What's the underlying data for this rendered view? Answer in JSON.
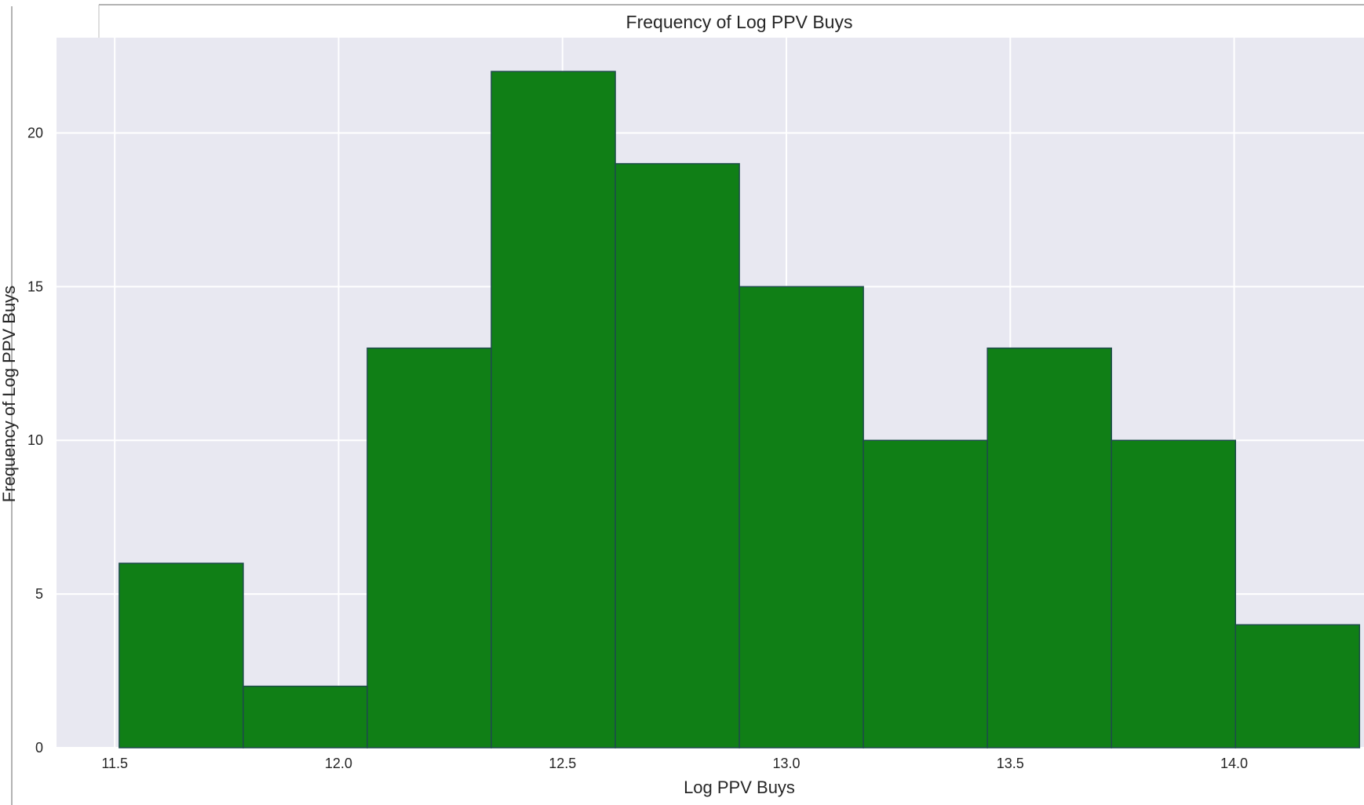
{
  "chart_data": {
    "type": "bar",
    "subtype": "histogram",
    "title": "Frequency of Log PPV Buys",
    "xlabel": "Log PPV Buys",
    "ylabel": "Frequency of Log PPV Buys",
    "bin_edges": [
      11.51,
      11.787,
      12.064,
      12.341,
      12.618,
      12.895,
      13.172,
      13.449,
      13.726,
      14.003,
      14.28
    ],
    "values": [
      6,
      2,
      13,
      22,
      19,
      15,
      10,
      13,
      10,
      4
    ],
    "xlim": [
      11.37,
      14.29
    ],
    "ylim": [
      0,
      23.1
    ],
    "xticks": [
      11.5,
      12.0,
      12.5,
      13.0,
      13.5,
      14.0
    ],
    "xtick_labels": [
      "11.5",
      "12.0",
      "12.5",
      "13.0",
      "13.5",
      "14.0"
    ],
    "yticks": [
      0,
      5,
      10,
      15,
      20
    ],
    "ytick_labels": [
      "0",
      "5",
      "10",
      "15",
      "20"
    ],
    "grid": true,
    "bar_color": "#107f16",
    "bar_edge_color": "#1e4b4b",
    "background_color": "#e8e8f1"
  }
}
